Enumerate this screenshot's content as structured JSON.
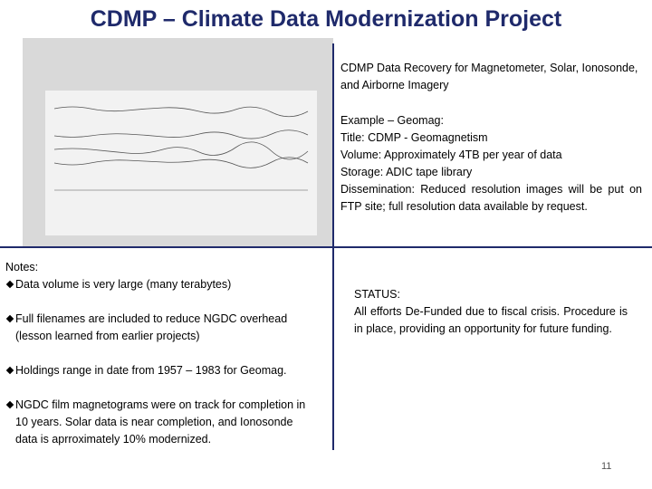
{
  "title": "CDMP – Climate Data Modernization Project",
  "summary": "CDMP Data Recovery for Magnetometer, Solar, Ionosonde, and Airborne Imagery",
  "example": {
    "heading": "Example – Geomag:",
    "fields": [
      {
        "label": "Title:",
        "value": "CDMP - Geomagnetism"
      },
      {
        "label": "Volume:",
        "value": "Approximately 4TB per year of data"
      },
      {
        "label": "Storage:",
        "value": "ADIC tape library"
      },
      {
        "label": "Dissemination:",
        "value": "Reduced resolution images will be put on FTP site; full resolution data available by request."
      }
    ]
  },
  "notes": {
    "heading": "Notes:",
    "items": [
      "Data volume is very large (many terabytes)",
      "Full filenames are included to reduce NGDC overhead (lesson learned from earlier projects)",
      "Holdings range in date from 1957 – 1983 for Geomag.",
      "NGDC film magnetograms were on track for completion in 10 years.  Solar data is near completion, and Ionosonde data is aprroximately 10% modernized."
    ]
  },
  "status": {
    "heading": "STATUS:",
    "text": "All efforts De-Funded due to fiscal crisis. Procedure is in place, providing an opportunity for future funding."
  },
  "page_number": 11
}
